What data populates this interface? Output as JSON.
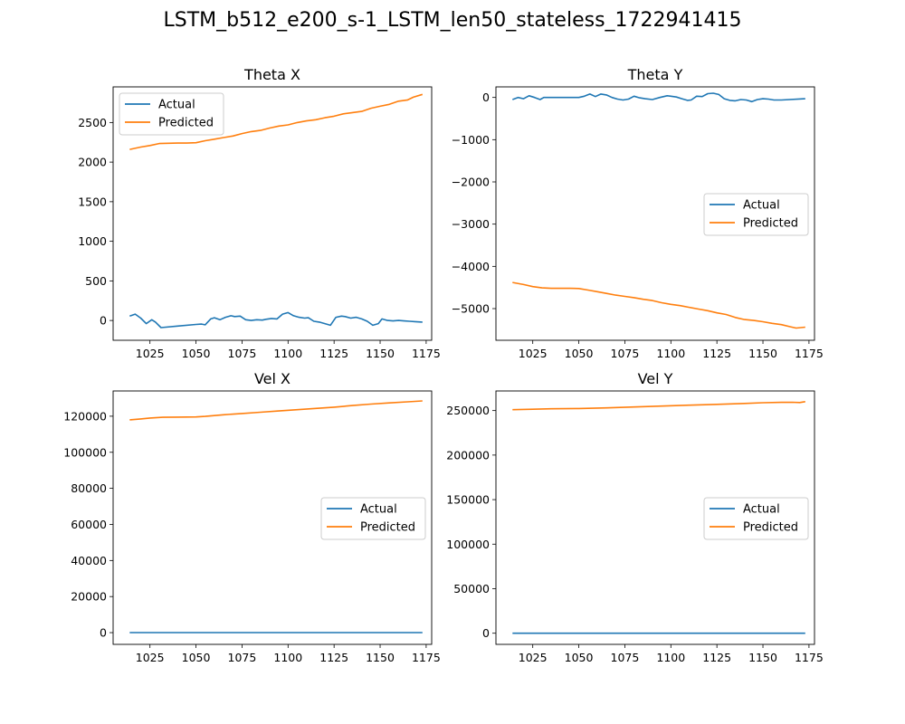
{
  "figure_title": "LSTM_b512_e200_s-1_LSTM_len50_stateless_1722941415",
  "colors": {
    "actual": "#1f77b4",
    "predicted": "#ff7f0e"
  },
  "chart_data": [
    {
      "type": "line",
      "title": "Theta X",
      "xlim": [
        1005,
        1178
      ],
      "ylim": [
        -250,
        2950
      ],
      "xticks": [
        1025,
        1050,
        1075,
        1100,
        1125,
        1150,
        1175
      ],
      "yticks": [
        0,
        500,
        1000,
        1500,
        2000,
        2500
      ],
      "ytick_labels": [
        "0",
        "500",
        "1000",
        "1500",
        "2000",
        "2500"
      ],
      "legend": "top-left",
      "series": [
        {
          "name": "Actual",
          "color": "#1f77b4",
          "x": [
            1014,
            1017,
            1020,
            1023,
            1026,
            1028,
            1031,
            1040,
            1050,
            1053,
            1055,
            1058,
            1060,
            1063,
            1066,
            1069,
            1071,
            1074,
            1077,
            1080,
            1083,
            1086,
            1088,
            1091,
            1094,
            1097,
            1100,
            1103,
            1106,
            1109,
            1111,
            1114,
            1117,
            1120,
            1123,
            1126,
            1129,
            1131,
            1134,
            1137,
            1140,
            1143,
            1146,
            1149,
            1151,
            1154,
            1157,
            1160,
            1163,
            1166,
            1169,
            1173
          ],
          "y": [
            55,
            80,
            30,
            -40,
            10,
            -20,
            -90,
            -70,
            -50,
            -45,
            -55,
            20,
            35,
            10,
            40,
            60,
            50,
            55,
            10,
            0,
            10,
            5,
            15,
            25,
            20,
            80,
            100,
            60,
            40,
            30,
            35,
            -10,
            -20,
            -40,
            -60,
            40,
            55,
            50,
            30,
            40,
            20,
            -10,
            -60,
            -40,
            20,
            0,
            -5,
            0,
            -5,
            -10,
            -15,
            -20
          ]
        },
        {
          "name": "Predicted",
          "color": "#ff7f0e",
          "x": [
            1014,
            1020,
            1025,
            1030,
            1035,
            1040,
            1045,
            1050,
            1055,
            1060,
            1065,
            1070,
            1075,
            1080,
            1085,
            1090,
            1095,
            1100,
            1105,
            1110,
            1115,
            1120,
            1125,
            1130,
            1135,
            1140,
            1145,
            1150,
            1155,
            1160,
            1165,
            1168,
            1173
          ],
          "y": [
            2160,
            2190,
            2210,
            2235,
            2238,
            2240,
            2240,
            2245,
            2270,
            2290,
            2310,
            2330,
            2360,
            2385,
            2400,
            2430,
            2455,
            2470,
            2500,
            2520,
            2535,
            2560,
            2580,
            2610,
            2625,
            2640,
            2680,
            2705,
            2730,
            2770,
            2785,
            2820,
            2855
          ]
        }
      ]
    },
    {
      "type": "line",
      "title": "Theta Y",
      "xlim": [
        1005,
        1178
      ],
      "ylim": [
        -5750,
        250
      ],
      "xticks": [
        1025,
        1050,
        1075,
        1100,
        1125,
        1150,
        1175
      ],
      "yticks": [
        0,
        -1000,
        -2000,
        -3000,
        -4000,
        -5000
      ],
      "ytick_labels": [
        "0",
        "−1000",
        "−2000",
        "−3000",
        "−4000",
        "−5000"
      ],
      "legend": "center-right",
      "series": [
        {
          "name": "Actual",
          "color": "#1f77b4",
          "x": [
            1014,
            1017,
            1020,
            1023,
            1026,
            1029,
            1031,
            1040,
            1050,
            1053,
            1056,
            1059,
            1062,
            1065,
            1068,
            1071,
            1074,
            1077,
            1080,
            1083,
            1086,
            1090,
            1094,
            1098,
            1100,
            1103,
            1106,
            1109,
            1111,
            1114,
            1117,
            1120,
            1123,
            1126,
            1129,
            1132,
            1135,
            1138,
            1141,
            1144,
            1147,
            1150,
            1153,
            1156,
            1160,
            1173
          ],
          "y": [
            -50,
            0,
            -30,
            40,
            0,
            -50,
            0,
            0,
            0,
            30,
            80,
            20,
            80,
            60,
            0,
            -40,
            -60,
            -40,
            30,
            -10,
            -30,
            -50,
            0,
            40,
            30,
            10,
            -30,
            -70,
            -60,
            30,
            20,
            90,
            100,
            70,
            -30,
            -70,
            -80,
            -50,
            -60,
            -100,
            -50,
            -30,
            -40,
            -60,
            -60,
            -30
          ]
        },
        {
          "name": "Predicted",
          "color": "#ff7f0e",
          "x": [
            1014,
            1020,
            1025,
            1030,
            1035,
            1040,
            1045,
            1050,
            1055,
            1060,
            1065,
            1070,
            1075,
            1080,
            1085,
            1090,
            1095,
            1100,
            1105,
            1110,
            1115,
            1120,
            1125,
            1130,
            1135,
            1140,
            1145,
            1150,
            1155,
            1160,
            1165,
            1168,
            1173
          ],
          "y": [
            -4380,
            -4430,
            -4480,
            -4510,
            -4520,
            -4520,
            -4520,
            -4525,
            -4560,
            -4600,
            -4640,
            -4680,
            -4710,
            -4740,
            -4780,
            -4810,
            -4860,
            -4900,
            -4930,
            -4970,
            -5010,
            -5050,
            -5100,
            -5140,
            -5210,
            -5260,
            -5280,
            -5310,
            -5350,
            -5380,
            -5430,
            -5460,
            -5440
          ]
        }
      ]
    },
    {
      "type": "line",
      "title": "Vel X",
      "xlim": [
        1005,
        1178
      ],
      "ylim": [
        -6500,
        134000
      ],
      "xticks": [
        1025,
        1050,
        1075,
        1100,
        1125,
        1150,
        1175
      ],
      "yticks": [
        0,
        20000,
        40000,
        60000,
        80000,
        100000,
        120000
      ],
      "ytick_labels": [
        "0",
        "20000",
        "40000",
        "60000",
        "80000",
        "100000",
        "120000"
      ],
      "legend": "center-right",
      "series": [
        {
          "name": "Actual",
          "color": "#1f77b4",
          "x": [
            1014,
            1050,
            1100,
            1150,
            1173
          ],
          "y": [
            0,
            0,
            0,
            0,
            0
          ]
        },
        {
          "name": "Predicted",
          "color": "#ff7f0e",
          "x": [
            1014,
            1020,
            1025,
            1032,
            1040,
            1050,
            1055,
            1065,
            1075,
            1085,
            1095,
            1105,
            1115,
            1125,
            1135,
            1145,
            1155,
            1165,
            1173
          ],
          "y": [
            118000,
            118500,
            119000,
            119400,
            119500,
            119600,
            119900,
            120800,
            121500,
            122200,
            122900,
            123600,
            124300,
            125000,
            125900,
            126700,
            127400,
            128000,
            128500
          ]
        }
      ]
    },
    {
      "type": "line",
      "title": "Vel Y",
      "xlim": [
        1005,
        1178
      ],
      "ylim": [
        -12500,
        272000
      ],
      "xticks": [
        1025,
        1050,
        1075,
        1100,
        1125,
        1150,
        1175
      ],
      "yticks": [
        0,
        50000,
        100000,
        150000,
        200000,
        250000
      ],
      "ytick_labels": [
        "0",
        "50000",
        "100000",
        "150000",
        "200000",
        "250000"
      ],
      "legend": "center-right",
      "series": [
        {
          "name": "Actual",
          "color": "#1f77b4",
          "x": [
            1014,
            1050,
            1100,
            1150,
            1173
          ],
          "y": [
            0,
            0,
            0,
            0,
            0
          ]
        },
        {
          "name": "Predicted",
          "color": "#ff7f0e",
          "x": [
            1014,
            1025,
            1035,
            1050,
            1065,
            1080,
            1095,
            1110,
            1125,
            1140,
            1150,
            1160,
            1166,
            1170,
            1173
          ],
          "y": [
            251000,
            251500,
            252000,
            252300,
            253000,
            254000,
            255000,
            256000,
            257000,
            258000,
            258800,
            259200,
            259300,
            259000,
            260000
          ]
        }
      ]
    }
  ]
}
